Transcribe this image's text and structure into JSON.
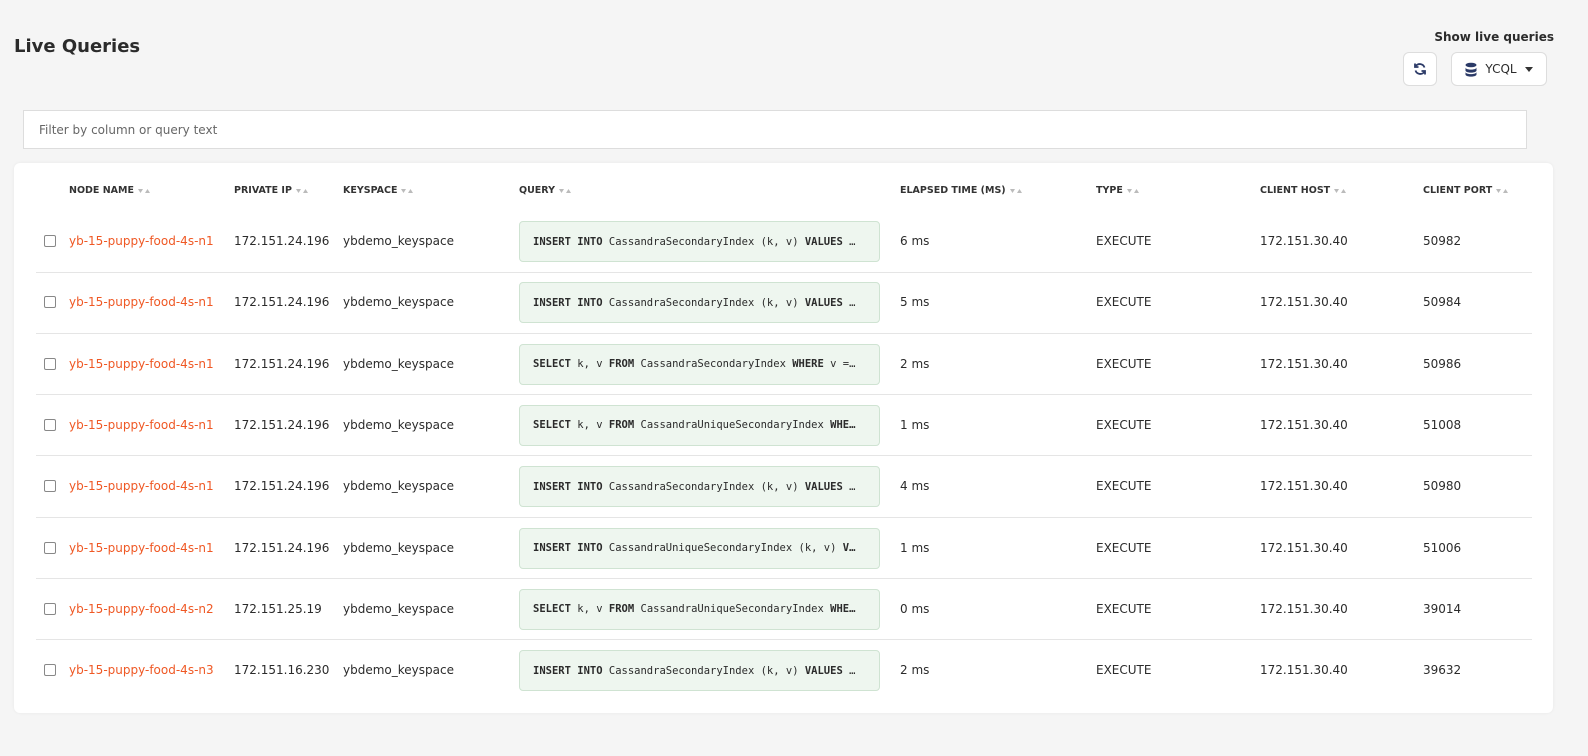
{
  "header": {
    "title": "Live Queries",
    "toggle_label": "Show live queries",
    "api_selector": "YCQL"
  },
  "filter": {
    "placeholder": "Filter by column or query text"
  },
  "table": {
    "columns": [
      "NODE NAME",
      "PRIVATE IP",
      "KEYSPACE",
      "QUERY",
      "ELAPSED TIME (MS)",
      "TYPE",
      "CLIENT HOST",
      "CLIENT PORT"
    ],
    "rows": [
      {
        "node": "yb-15-puppy-food-4s-n1",
        "ip": "172.151.24.196",
        "keyspace": "ybdemo_keyspace",
        "query": [
          {
            "text": "INSERT INTO",
            "bold": true
          },
          {
            "text": " CassandraSecondaryIndex (k, v) "
          },
          {
            "text": "VALUES",
            "bold": true
          },
          {
            "text": " …"
          }
        ],
        "elapsed": "6 ms",
        "type": "EXECUTE",
        "host": "172.151.30.40",
        "port": 50982
      },
      {
        "node": "yb-15-puppy-food-4s-n1",
        "ip": "172.151.24.196",
        "keyspace": "ybdemo_keyspace",
        "query": [
          {
            "text": "INSERT INTO",
            "bold": true
          },
          {
            "text": " CassandraSecondaryIndex (k, v) "
          },
          {
            "text": "VALUES",
            "bold": true
          },
          {
            "text": " …"
          }
        ],
        "elapsed": "5 ms",
        "type": "EXECUTE",
        "host": "172.151.30.40",
        "port": 50984
      },
      {
        "node": "yb-15-puppy-food-4s-n1",
        "ip": "172.151.24.196",
        "keyspace": "ybdemo_keyspace",
        "query": [
          {
            "text": "SELECT",
            "bold": true
          },
          {
            "text": " k, v "
          },
          {
            "text": "FROM",
            "bold": true
          },
          {
            "text": " CassandraSecondaryIndex "
          },
          {
            "text": "WHERE",
            "bold": true
          },
          {
            "text": " v =…"
          }
        ],
        "elapsed": "2 ms",
        "type": "EXECUTE",
        "host": "172.151.30.40",
        "port": 50986
      },
      {
        "node": "yb-15-puppy-food-4s-n1",
        "ip": "172.151.24.196",
        "keyspace": "ybdemo_keyspace",
        "query": [
          {
            "text": "SELECT",
            "bold": true
          },
          {
            "text": " k, v "
          },
          {
            "text": "FROM",
            "bold": true
          },
          {
            "text": " CassandraUniqueSecondaryIndex "
          },
          {
            "text": "WHE…",
            "bold": true
          }
        ],
        "elapsed": "1 ms",
        "type": "EXECUTE",
        "host": "172.151.30.40",
        "port": 51008
      },
      {
        "node": "yb-15-puppy-food-4s-n1",
        "ip": "172.151.24.196",
        "keyspace": "ybdemo_keyspace",
        "query": [
          {
            "text": "INSERT INTO",
            "bold": true
          },
          {
            "text": " CassandraSecondaryIndex (k, v) "
          },
          {
            "text": "VALUES",
            "bold": true
          },
          {
            "text": " …"
          }
        ],
        "elapsed": "4 ms",
        "type": "EXECUTE",
        "host": "172.151.30.40",
        "port": 50980
      },
      {
        "node": "yb-15-puppy-food-4s-n1",
        "ip": "172.151.24.196",
        "keyspace": "ybdemo_keyspace",
        "query": [
          {
            "text": "INSERT INTO",
            "bold": true
          },
          {
            "text": " CassandraUniqueSecondaryIndex (k, v) "
          },
          {
            "text": "V…",
            "bold": true
          }
        ],
        "elapsed": "1 ms",
        "type": "EXECUTE",
        "host": "172.151.30.40",
        "port": 51006
      },
      {
        "node": "yb-15-puppy-food-4s-n2",
        "ip": "172.151.25.19",
        "keyspace": "ybdemo_keyspace",
        "query": [
          {
            "text": "SELECT",
            "bold": true
          },
          {
            "text": " k, v "
          },
          {
            "text": "FROM",
            "bold": true
          },
          {
            "text": " CassandraUniqueSecondaryIndex "
          },
          {
            "text": "WHE…",
            "bold": true
          }
        ],
        "elapsed": "0 ms",
        "type": "EXECUTE",
        "host": "172.151.30.40",
        "port": 39014
      },
      {
        "node": "yb-15-puppy-food-4s-n3",
        "ip": "172.151.16.230",
        "keyspace": "ybdemo_keyspace",
        "query": [
          {
            "text": "INSERT INTO",
            "bold": true
          },
          {
            "text": " CassandraSecondaryIndex (k, v) "
          },
          {
            "text": "VALUES",
            "bold": true
          },
          {
            "text": " …"
          }
        ],
        "elapsed": "2 ms",
        "type": "EXECUTE",
        "host": "172.151.30.40",
        "port": 39632
      }
    ]
  }
}
